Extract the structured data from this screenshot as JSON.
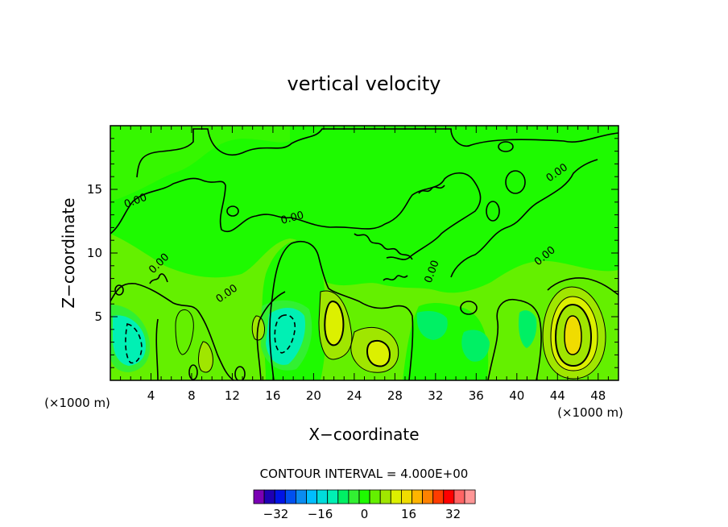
{
  "chart_data": {
    "type": "heatmap",
    "title": "vertical velocity",
    "xlabel": "X−coordinate",
    "ylabel": "Z−coordinate",
    "x_unit_label": "(×1000 m)",
    "y_unit_label": "(×1000 m)",
    "xlim": [
      0,
      50
    ],
    "ylim": [
      0,
      20
    ],
    "x_ticks": [
      4,
      8,
      12,
      16,
      20,
      24,
      28,
      32,
      36,
      40,
      44,
      48
    ],
    "y_ticks": [
      5,
      10,
      15
    ],
    "contour_interval_label": "CONTOUR INTERVAL = 4.000E+00",
    "contour_labels": [
      "0.00",
      "0.00",
      "0.00",
      "0.00",
      "0.00",
      "0.00",
      "0.00"
    ],
    "colorbar": {
      "levels": [
        -40,
        -36,
        -32,
        -28,
        -24,
        -20,
        -16,
        -12,
        -8,
        -4,
        0,
        4,
        8,
        12,
        16,
        20,
        24,
        28,
        32,
        36,
        40
      ],
      "colors": [
        "#7a00b4",
        "#1e00b4",
        "#0014e6",
        "#0050f0",
        "#0a8cf0",
        "#00beff",
        "#00dcdc",
        "#00f0b4",
        "#00f064",
        "#32f032",
        "#1efa00",
        "#64f000",
        "#a0e600",
        "#dcf000",
        "#f0dc00",
        "#ffb400",
        "#ff8200",
        "#ff3c00",
        "#ff0000",
        "#ff6464",
        "#ff9696"
      ],
      "tick_labels": [
        "−32",
        "−16",
        "0",
        "16",
        "32"
      ],
      "tick_values": [
        -32,
        -16,
        0,
        16,
        32
      ]
    },
    "features": [
      {
        "type": "updraft",
        "x": 45.5,
        "z": 3.8,
        "max": 18
      },
      {
        "type": "updraft",
        "x": 22.1,
        "z": 4.8,
        "max": 12
      },
      {
        "type": "updraft",
        "x": 26.6,
        "z": 2.2,
        "max": 10
      },
      {
        "type": "updraft",
        "x": 9.5,
        "z": 2.0,
        "max": 6
      },
      {
        "type": "updraft",
        "x": 14.7,
        "z": 4.0,
        "max": 6
      },
      {
        "type": "updraft",
        "x": 7.6,
        "z": 4.5,
        "max": 5
      },
      {
        "type": "downdraft",
        "x": 2.3,
        "z": 3.0,
        "min": -8
      },
      {
        "type": "downdraft",
        "x": 17.0,
        "z": 4.2,
        "min": -9
      },
      {
        "type": "downdraft",
        "x": 30.8,
        "z": 4.5,
        "min": -4
      },
      {
        "type": "downdraft",
        "x": 35.1,
        "z": 2.6,
        "min": -4
      },
      {
        "type": "downdraft",
        "x": 41.5,
        "z": 4.0,
        "min": -4
      }
    ]
  }
}
